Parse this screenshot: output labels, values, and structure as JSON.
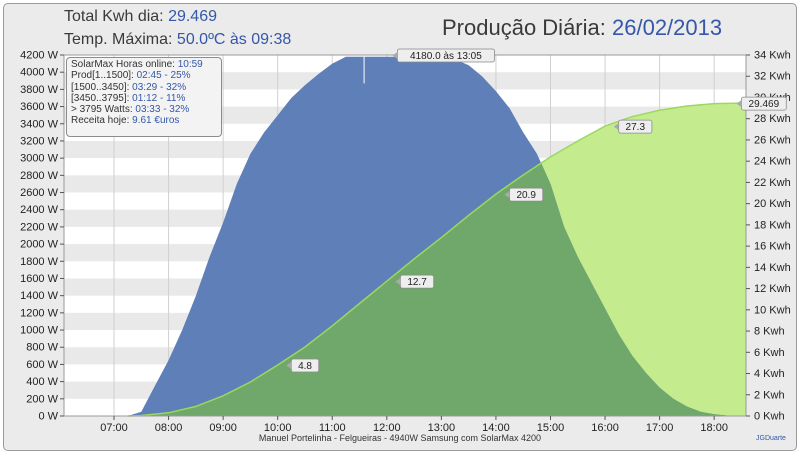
{
  "header": {
    "total_label": "Total Kwh dia:",
    "total_value": "29.469",
    "temp_label": "Temp. Máxima:",
    "temp_value": "50.0ºC às 09:38",
    "title_label": "Produção Diária:",
    "title_date": "26/02/2013"
  },
  "info_box": {
    "rows": [
      {
        "k": "SolarMax Horas online:",
        "v": "10:59"
      },
      {
        "k": "Prod[1..1500]:",
        "v": "02:45 - 25%"
      },
      {
        "k": "[1500..3450]:",
        "v": "03:29 - 32%"
      },
      {
        "k": "[3450..3795]:",
        "v": "01:12 - 11%"
      },
      {
        "k": "> 3795 Watts:",
        "v": "03:33 - 32%"
      },
      {
        "k": "Receita hoje:",
        "v": "9.61 €uros"
      }
    ]
  },
  "footer": {
    "text": "Manuel Portelinha - Felgueiras - 4940W Samsung com SolarMax 4200",
    "credit": "JGDuarte"
  },
  "colors": {
    "power_fill": "#5f7fb9",
    "energy_fill": "#6fa86a",
    "energy_light": "#c4ec8e",
    "energy_line": "#9ad85f"
  },
  "chart_data": {
    "type": "area",
    "x_ticks": [
      "07:00",
      "08:00",
      "09:00",
      "10:00",
      "11:00",
      "12:00",
      "13:00",
      "14:00",
      "15:00",
      "16:00",
      "17:00",
      "18:00"
    ],
    "xlim": [
      "06:05",
      "18:35"
    ],
    "y_left_ticks": [
      "0 W",
      "200 W",
      "400 W",
      "600 W",
      "800 W",
      "1000 W",
      "1200 W",
      "1400 W",
      "1600 W",
      "1800 W",
      "2000 W",
      "2200 W",
      "2400 W",
      "2600 W",
      "2800 W",
      "3000 W",
      "3200 W",
      "3400 W",
      "3600 W",
      "3800 W",
      "4000 W",
      "4200 W"
    ],
    "y_left_lim": [
      0,
      4200
    ],
    "y_right_ticks": [
      "0 Kwh",
      "2 Kwh",
      "4 Kwh",
      "6 Kwh",
      "8 Kwh",
      "10 Kwh",
      "12 Kwh",
      "14 Kwh",
      "16 Kwh",
      "18 Kwh",
      "20 Kwh",
      "22 Kwh",
      "24 Kwh",
      "26 Kwh",
      "28 Kwh",
      "30 Kwh",
      "32 Kwh",
      "34 Kwh"
    ],
    "y_right_lim": [
      0,
      34
    ],
    "grid": true,
    "series": [
      {
        "unit": "W",
        "x": [
          "07:15",
          "07:30",
          "07:45",
          "08:00",
          "08:15",
          "08:30",
          "08:45",
          "09:00",
          "09:15",
          "09:30",
          "09:45",
          "10:00",
          "10:15",
          "10:30",
          "10:45",
          "11:00",
          "11:15",
          "11:30",
          "11:45",
          "12:00",
          "12:15",
          "12:30",
          "12:45",
          "13:00",
          "13:15",
          "13:30",
          "13:45",
          "14:00",
          "14:15",
          "14:30",
          "14:45",
          "15:00",
          "15:15",
          "15:30",
          "15:45",
          "16:00",
          "16:15",
          "16:30",
          "16:45",
          "17:00",
          "17:15",
          "17:30",
          "17:45",
          "18:00",
          "18:15",
          "18:30"
        ],
        "values": [
          0,
          50,
          350,
          650,
          1000,
          1400,
          1850,
          2250,
          2700,
          3050,
          3300,
          3500,
          3700,
          3850,
          3980,
          4100,
          4180,
          4180,
          4180,
          4180,
          4180,
          4180,
          4180,
          4180,
          4150,
          4080,
          3950,
          3780,
          3580,
          3300,
          3050,
          2700,
          2200,
          1850,
          1550,
          1250,
          950,
          700,
          500,
          330,
          200,
          110,
          50,
          20,
          5,
          0
        ]
      },
      {
        "unit": "Kwh",
        "x": [
          "07:15",
          "07:30",
          "08:00",
          "08:30",
          "09:00",
          "09:30",
          "10:00",
          "10:30",
          "11:00",
          "11:30",
          "12:00",
          "12:30",
          "13:00",
          "13:30",
          "14:00",
          "14:30",
          "15:00",
          "15:30",
          "16:00",
          "16:30",
          "17:00",
          "17:30",
          "18:00",
          "18:30"
        ],
        "values": [
          0,
          0.05,
          0.3,
          0.9,
          1.9,
          3.2,
          4.8,
          6.5,
          8.5,
          10.6,
          12.7,
          14.8,
          16.8,
          18.9,
          20.9,
          22.7,
          24.4,
          25.9,
          27.3,
          28.2,
          28.8,
          29.2,
          29.42,
          29.469
        ]
      }
    ],
    "annotations": [
      {
        "time": "13:05",
        "value": 4180,
        "axis": "left",
        "text": "4180.0 às 13:05"
      },
      {
        "time": "10:15",
        "value": 4.8,
        "axis": "right",
        "text": "4.8"
      },
      {
        "time": "12:15",
        "value": 12.7,
        "axis": "right",
        "text": "12.7"
      },
      {
        "time": "14:15",
        "value": 20.9,
        "axis": "right",
        "text": "20.9"
      },
      {
        "time": "16:15",
        "value": 27.3,
        "axis": "right",
        "text": "27.3"
      },
      {
        "time": "18:30",
        "value": 29.469,
        "axis": "right",
        "text": "29.469"
      }
    ]
  }
}
